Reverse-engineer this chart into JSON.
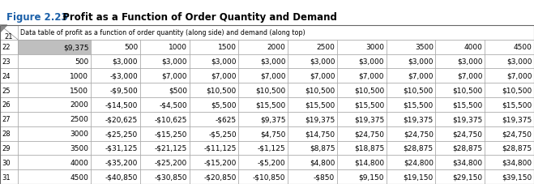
{
  "title": "Figure 2.23",
  "title_suffix": "  Profit as a Function of Order Quantity and Demand",
  "header_col_label": "Data table of profit as a function of order quantity (along side) and demand (along top)",
  "row22_label": "$9,375",
  "demand_values": [
    "500",
    "1000",
    "1500",
    "2000",
    "2500",
    "3000",
    "3500",
    "4000",
    "4500"
  ],
  "order_quantities": [
    "500",
    "1000",
    "1500",
    "2000",
    "2500",
    "3000",
    "3500",
    "4000",
    "4500"
  ],
  "table_data": [
    [
      "$3,000",
      "$3,000",
      "$3,000",
      "$3,000",
      "$3,000",
      "$3,000",
      "$3,000",
      "$3,000",
      "$3,000"
    ],
    [
      "-$3,000",
      "$7,000",
      "$7,000",
      "$7,000",
      "$7,000",
      "$7,000",
      "$7,000",
      "$7,000",
      "$7,000"
    ],
    [
      "-$9,500",
      "$500",
      "$10,500",
      "$10,500",
      "$10,500",
      "$10,500",
      "$10,500",
      "$10,500",
      "$10,500"
    ],
    [
      "-$14,500",
      "-$4,500",
      "$5,500",
      "$15,500",
      "$15,500",
      "$15,500",
      "$15,500",
      "$15,500",
      "$15,500"
    ],
    [
      "-$20,625",
      "-$10,625",
      "-$625",
      "$9,375",
      "$19,375",
      "$19,375",
      "$19,375",
      "$19,375",
      "$19,375"
    ],
    [
      "-$25,250",
      "-$15,250",
      "-$5,250",
      "$4,750",
      "$14,750",
      "$24,750",
      "$24,750",
      "$24,750",
      "$24,750"
    ],
    [
      "-$31,125",
      "-$21,125",
      "-$11,125",
      "-$1,125",
      "$8,875",
      "$18,875",
      "$28,875",
      "$28,875",
      "$28,875"
    ],
    [
      "-$35,200",
      "-$25,200",
      "-$15,200",
      "-$5,200",
      "$4,800",
      "$14,800",
      "$24,800",
      "$34,800",
      "$34,800"
    ],
    [
      "-$40,850",
      "-$30,850",
      "-$20,850",
      "-$10,850",
      "-$850",
      "$9,150",
      "$19,150",
      "$29,150",
      "$39,150"
    ]
  ],
  "row_numbers": [
    "21",
    "22",
    "23",
    "24",
    "25",
    "26",
    "27",
    "28",
    "29",
    "30",
    "31"
  ],
  "title_color": "#1a5fa8",
  "blue_bar_color": "#1a5fa8",
  "gray_header_bg": "#bfbfbf",
  "cell_border_color": "#999999",
  "fig_bg": "#ffffff"
}
